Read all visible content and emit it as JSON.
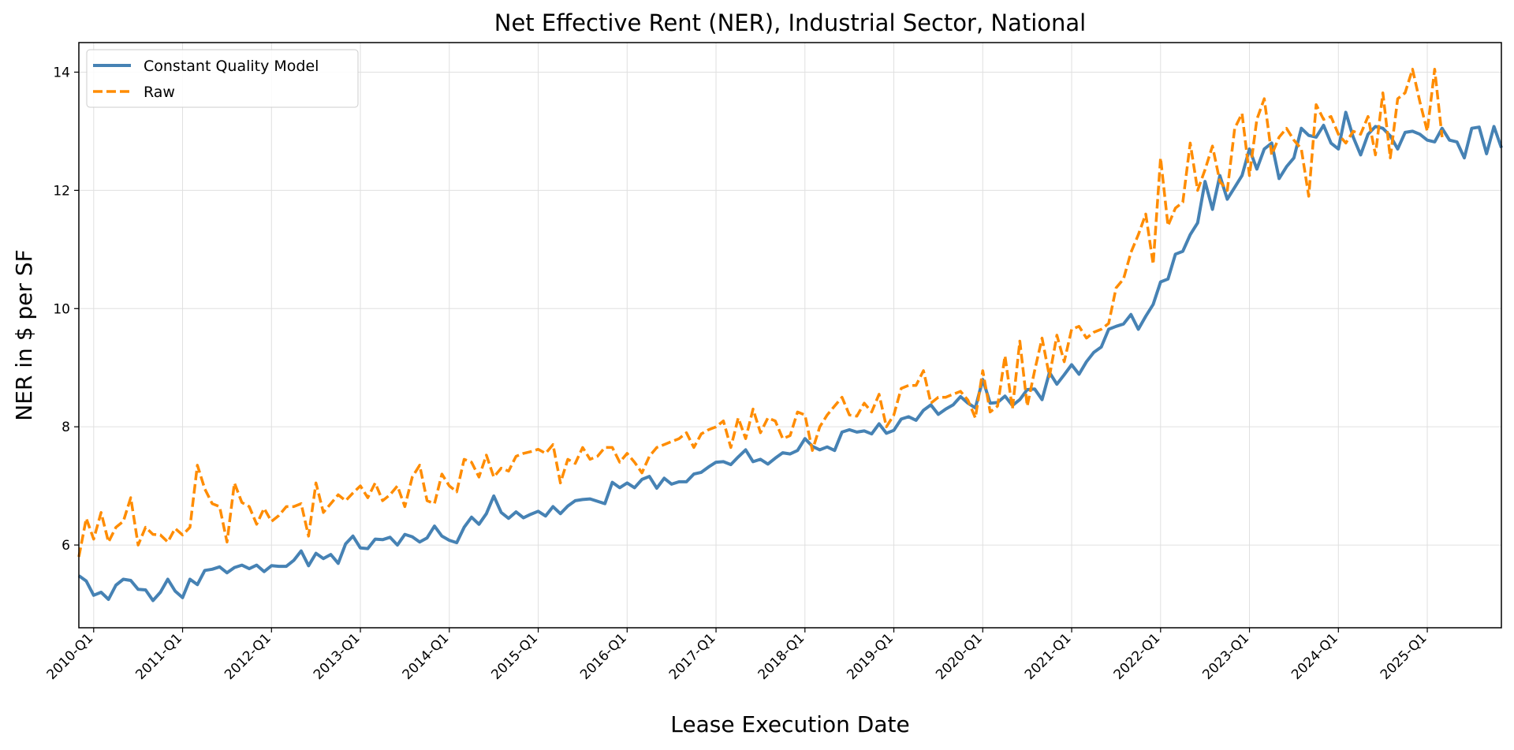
{
  "chart_data": {
    "type": "line",
    "title": "Net Effective Rent (NER), Industrial Sector, National",
    "xlabel": "Lease Execution Date",
    "ylabel": "NER in $ per SF",
    "x_start": "2009-11",
    "x_step": "month",
    "x_tick_labels": [
      "2010-Q1",
      "2011-Q1",
      "2012-Q1",
      "2013-Q1",
      "2014-Q1",
      "2015-Q1",
      "2016-Q1",
      "2017-Q1",
      "2018-Q1",
      "2019-Q1",
      "2020-Q1",
      "2021-Q1",
      "2022-Q1",
      "2023-Q1",
      "2024-Q1",
      "2025-Q1"
    ],
    "ylim": [
      4.6,
      14.5
    ],
    "y_ticks": [
      6,
      8,
      10,
      12,
      14
    ],
    "grid": true,
    "legend_position": "top-left",
    "series": [
      {
        "name": "Constant Quality Model",
        "color": "#4682B4",
        "style": "solid",
        "values": [
          5.48,
          5.39,
          5.15,
          5.2,
          5.08,
          5.32,
          5.42,
          5.4,
          5.25,
          5.24,
          5.06,
          5.2,
          5.42,
          5.22,
          5.11,
          5.42,
          5.33,
          5.57,
          5.59,
          5.63,
          5.53,
          5.62,
          5.66,
          5.6,
          5.66,
          5.55,
          5.65,
          5.64,
          5.64,
          5.74,
          5.9,
          5.65,
          5.86,
          5.77,
          5.84,
          5.69,
          6.02,
          6.15,
          5.95,
          5.94,
          6.1,
          6.09,
          6.13,
          6.0,
          6.18,
          6.14,
          6.05,
          6.12,
          6.32,
          6.15,
          6.08,
          6.04,
          6.3,
          6.47,
          6.35,
          6.53,
          6.83,
          6.55,
          6.45,
          6.56,
          6.46,
          6.52,
          6.57,
          6.49,
          6.65,
          6.53,
          6.66,
          6.75,
          6.77,
          6.78,
          6.74,
          6.7,
          7.06,
          6.97,
          7.05,
          6.97,
          7.11,
          7.16,
          6.96,
          7.13,
          7.03,
          7.07,
          7.07,
          7.2,
          7.23,
          7.32,
          7.4,
          7.41,
          7.36,
          7.49,
          7.61,
          7.41,
          7.45,
          7.37,
          7.47,
          7.56,
          7.54,
          7.6,
          7.8,
          7.67,
          7.61,
          7.66,
          7.6,
          7.91,
          7.95,
          7.91,
          7.93,
          7.88,
          8.05,
          7.89,
          7.94,
          8.13,
          8.17,
          8.11,
          8.28,
          8.37,
          8.21,
          8.3,
          8.37,
          8.51,
          8.4,
          8.32,
          8.8,
          8.4,
          8.41,
          8.52,
          8.36,
          8.46,
          8.63,
          8.64,
          8.46,
          8.92,
          8.72,
          8.88,
          9.05,
          8.89,
          9.1,
          9.26,
          9.35,
          9.65,
          9.7,
          9.74,
          9.9,
          9.65,
          9.87,
          10.07,
          10.45,
          10.5,
          10.92,
          10.97,
          11.25,
          11.45,
          12.15,
          11.68,
          12.25,
          11.85,
          12.05,
          12.25,
          12.7,
          12.36,
          12.7,
          12.8,
          12.2,
          12.4,
          12.55,
          13.05,
          12.93,
          12.9,
          13.1,
          12.8,
          12.7,
          13.32,
          12.9,
          12.6,
          12.95,
          13.08,
          13.05,
          12.92,
          12.7,
          12.98,
          13.0,
          12.95,
          12.85,
          12.82,
          13.05,
          12.85,
          12.82,
          12.55,
          13.05,
          13.07,
          12.62,
          13.08,
          12.72
        ]
      },
      {
        "name": "Raw",
        "color": "#FF8C00",
        "style": "dashed",
        "values": [
          5.8,
          6.45,
          6.1,
          6.55,
          6.05,
          6.3,
          6.4,
          6.8,
          6.0,
          6.3,
          6.18,
          6.17,
          6.05,
          6.28,
          6.17,
          6.3,
          7.35,
          6.95,
          6.7,
          6.65,
          6.05,
          7.05,
          6.72,
          6.65,
          6.35,
          6.62,
          6.4,
          6.5,
          6.65,
          6.65,
          6.7,
          6.15,
          7.05,
          6.55,
          6.7,
          6.85,
          6.75,
          6.88,
          7.0,
          6.8,
          7.05,
          6.75,
          6.85,
          7.0,
          6.65,
          7.15,
          7.35,
          6.75,
          6.7,
          7.2,
          7.0,
          6.9,
          7.45,
          7.4,
          7.15,
          7.52,
          7.15,
          7.3,
          7.25,
          7.5,
          7.55,
          7.58,
          7.62,
          7.55,
          7.7,
          7.05,
          7.45,
          7.38,
          7.65,
          7.45,
          7.5,
          7.65,
          7.65,
          7.4,
          7.55,
          7.4,
          7.22,
          7.5,
          7.65,
          7.7,
          7.75,
          7.8,
          7.9,
          7.65,
          7.88,
          7.95,
          8.0,
          8.1,
          7.65,
          8.15,
          7.8,
          8.3,
          7.9,
          8.15,
          8.1,
          7.8,
          7.85,
          8.25,
          8.2,
          7.6,
          8.0,
          8.2,
          8.35,
          8.5,
          8.2,
          8.18,
          8.4,
          8.25,
          8.55,
          8.0,
          8.2,
          8.65,
          8.7,
          8.7,
          8.95,
          8.4,
          8.5,
          8.5,
          8.55,
          8.6,
          8.45,
          8.15,
          8.95,
          8.25,
          8.35,
          9.2,
          8.3,
          9.45,
          8.35,
          8.95,
          9.5,
          8.85,
          9.55,
          9.1,
          9.65,
          9.7,
          9.5,
          9.6,
          9.65,
          9.75,
          10.35,
          10.5,
          10.95,
          11.25,
          11.6,
          10.75,
          12.55,
          11.4,
          11.7,
          11.8,
          12.8,
          12.0,
          12.35,
          12.75,
          12.15,
          12.0,
          13.05,
          13.3,
          12.25,
          13.2,
          13.55,
          12.6,
          12.9,
          13.05,
          12.85,
          12.7,
          11.9,
          13.45,
          13.2,
          13.25,
          12.95,
          12.8,
          13.0,
          12.95,
          13.25,
          12.6,
          13.65,
          12.55,
          13.55,
          13.65,
          14.05,
          13.5,
          13.0,
          14.05,
          12.9
        ]
      }
    ]
  }
}
